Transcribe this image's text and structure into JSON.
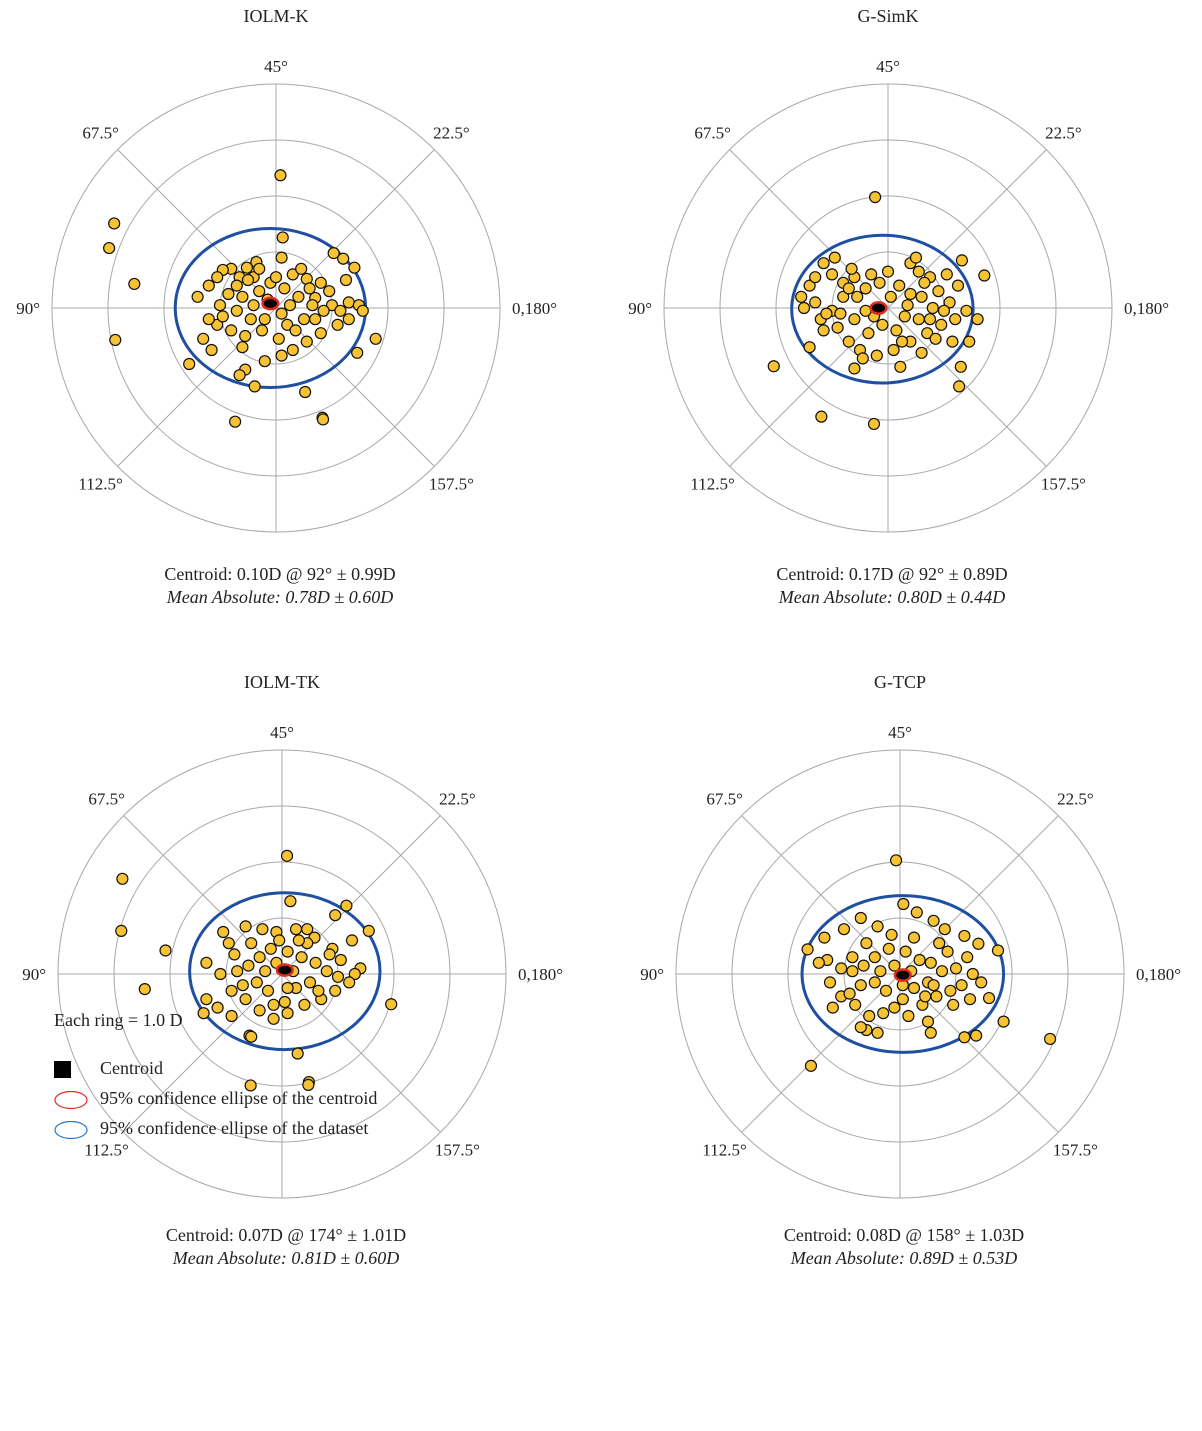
{
  "chart_data": [
    {
      "type": "scatter",
      "title": "IOLM-K",
      "angle_labels": [
        "45°",
        "22.5°",
        "0,180°",
        "157.5°",
        "112.5°",
        "90°",
        "67.5°"
      ],
      "centroid_text": "Centroid: 0.10D @ 92° ± 0.99D",
      "mean_text": "Mean Absolute: 0.78D ± 0.60D",
      "centroid": {
        "x": -0.1,
        "y": 0.08
      },
      "dataset_ellipse": {
        "cx": -0.1,
        "cy": 0.0,
        "rx": 1.7,
        "ry": 1.42
      },
      "centroid_ellipse": {
        "rx": 0.14,
        "ry": 0.1
      },
      "points": [
        [
          -2.89,
          1.51
        ],
        [
          -2.98,
          1.07
        ],
        [
          -2.53,
          0.43
        ],
        [
          -2.87,
          -0.57
        ],
        [
          0.08,
          2.37
        ],
        [
          0.12,
          1.26
        ],
        [
          0.1,
          0.9
        ],
        [
          -0.35,
          0.82
        ],
        [
          -0.52,
          0.72
        ],
        [
          -0.8,
          0.7
        ],
        [
          -0.95,
          0.68
        ],
        [
          -1.05,
          0.55
        ],
        [
          -1.2,
          0.4
        ],
        [
          -0.65,
          0.55
        ],
        [
          -0.4,
          0.55
        ],
        [
          0.3,
          0.6
        ],
        [
          0.55,
          0.52
        ],
        [
          0.8,
          0.45
        ],
        [
          1.03,
          0.98
        ],
        [
          1.2,
          0.88
        ],
        [
          1.4,
          0.72
        ],
        [
          1.25,
          0.5
        ],
        [
          0.95,
          0.3
        ],
        [
          0.7,
          0.18
        ],
        [
          1.3,
          0.1
        ],
        [
          1.48,
          0.05
        ],
        [
          1.55,
          -0.05
        ],
        [
          1.3,
          -0.2
        ],
        [
          1.1,
          -0.3
        ],
        [
          0.8,
          -0.45
        ],
        [
          0.55,
          -0.6
        ],
        [
          0.3,
          -0.75
        ],
        [
          0.1,
          -0.85
        ],
        [
          -0.2,
          -0.95
        ],
        [
          -0.55,
          -0.5
        ],
        [
          -0.8,
          -0.4
        ],
        [
          -1.05,
          -0.3
        ],
        [
          -1.2,
          -0.2
        ],
        [
          -1.4,
          0.2
        ],
        [
          -1.3,
          -0.55
        ],
        [
          -1.15,
          -0.75
        ],
        [
          -0.55,
          -1.1
        ],
        [
          -0.65,
          -1.2
        ],
        [
          -0.38,
          -1.4
        ],
        [
          -1.55,
          -1.0
        ],
        [
          0.52,
          -1.5
        ],
        [
          0.83,
          -1.96
        ],
        [
          0.84,
          -1.99
        ],
        [
          -0.73,
          -2.03
        ],
        [
          1.78,
          -0.55
        ],
        [
          1.45,
          -0.8
        ],
        [
          -0.1,
          0.45
        ],
        [
          0.15,
          0.35
        ],
        [
          -0.3,
          0.3
        ],
        [
          0.4,
          0.2
        ],
        [
          -0.6,
          0.2
        ],
        [
          -0.85,
          0.25
        ],
        [
          0.2,
          -0.3
        ],
        [
          -0.25,
          -0.4
        ],
        [
          0.5,
          -0.2
        ],
        [
          -0.45,
          -0.2
        ],
        [
          0.05,
          -0.55
        ],
        [
          -0.7,
          -0.05
        ],
        [
          0.65,
          0.05
        ],
        [
          1.0,
          0.05
        ],
        [
          -1.0,
          0.05
        ],
        [
          0.35,
          -0.4
        ],
        [
          -0.15,
          0.15
        ],
        [
          0.25,
          0.05
        ],
        [
          -0.4,
          0.05
        ],
        [
          0.6,
          0.35
        ],
        [
          -0.7,
          0.4
        ],
        [
          -0.95,
          -0.15
        ],
        [
          0.85,
          -0.05
        ],
        [
          1.15,
          -0.05
        ],
        [
          -0.2,
          -0.2
        ],
        [
          0.1,
          -0.1
        ],
        [
          -0.6,
          -0.7
        ],
        [
          0.45,
          0.7
        ],
        [
          -0.3,
          0.7
        ],
        [
          0.0,
          0.55
        ],
        [
          0.7,
          -0.2
        ],
        [
          -0.5,
          0.5
        ]
      ]
    },
    {
      "type": "scatter",
      "title": "G-SimK",
      "angle_labels": [
        "45°",
        "22.5°",
        "0,180°",
        "157.5°",
        "112.5°",
        "90°",
        "67.5°"
      ],
      "centroid_text": "Centroid: 0.17D @ 92° ± 0.89D",
      "mean_text": "Mean Absolute: 0.80D ± 0.44D",
      "centroid": {
        "x": -0.17,
        "y": 0.0
      },
      "dataset_ellipse": {
        "cx": -0.1,
        "cy": -0.02,
        "rx": 1.62,
        "ry": 1.32
      },
      "centroid_ellipse": {
        "rx": 0.14,
        "ry": 0.1
      },
      "points": [
        [
          -0.23,
          1.98
        ],
        [
          1.32,
          0.85
        ],
        [
          1.72,
          0.58
        ],
        [
          -0.6,
          0.55
        ],
        [
          -0.3,
          0.6
        ],
        [
          0.4,
          0.8
        ],
        [
          0.55,
          0.65
        ],
        [
          0.75,
          0.55
        ],
        [
          -1.15,
          0.8
        ],
        [
          -1.0,
          0.6
        ],
        [
          -0.8,
          0.45
        ],
        [
          -1.4,
          0.4
        ],
        [
          -1.55,
          0.2
        ],
        [
          -1.3,
          0.1
        ],
        [
          -1.5,
          0.0
        ],
        [
          -1.2,
          -0.2
        ],
        [
          -0.9,
          -0.35
        ],
        [
          -0.7,
          -0.6
        ],
        [
          -0.5,
          -0.75
        ],
        [
          -0.2,
          -0.85
        ],
        [
          0.1,
          -0.75
        ],
        [
          0.4,
          -0.6
        ],
        [
          0.7,
          -0.45
        ],
        [
          0.95,
          -0.3
        ],
        [
          1.2,
          -0.2
        ],
        [
          1.4,
          -0.05
        ],
        [
          1.6,
          -0.2
        ],
        [
          1.1,
          0.1
        ],
        [
          0.9,
          0.3
        ],
        [
          1.25,
          0.4
        ],
        [
          1.45,
          -0.6
        ],
        [
          1.3,
          -1.05
        ],
        [
          1.27,
          -1.4
        ],
        [
          -2.04,
          -1.04
        ],
        [
          -1.19,
          -1.94
        ],
        [
          -0.25,
          -2.07
        ],
        [
          -1.4,
          -0.7
        ],
        [
          -0.6,
          -1.08
        ],
        [
          0.22,
          -1.05
        ],
        [
          -0.4,
          0.35
        ],
        [
          -0.15,
          0.45
        ],
        [
          0.2,
          0.4
        ],
        [
          0.4,
          0.25
        ],
        [
          0.6,
          0.2
        ],
        [
          -0.55,
          0.2
        ],
        [
          -0.8,
          0.2
        ],
        [
          -1.0,
          -0.05
        ],
        [
          0.15,
          -0.4
        ],
        [
          -0.35,
          -0.45
        ],
        [
          0.55,
          -0.2
        ],
        [
          -0.6,
          -0.2
        ],
        [
          0.8,
          0.0
        ],
        [
          1.0,
          -0.05
        ],
        [
          0.3,
          -0.15
        ],
        [
          -0.25,
          -0.15
        ],
        [
          0.05,
          0.2
        ],
        [
          -0.1,
          -0.3
        ],
        [
          0.35,
          0.05
        ],
        [
          -0.4,
          -0.05
        ],
        [
          0.65,
          0.45
        ],
        [
          -0.7,
          0.35
        ],
        [
          -0.85,
          -0.1
        ],
        [
          0.85,
          -0.55
        ],
        [
          -0.45,
          -0.9
        ],
        [
          0.25,
          -0.6
        ],
        [
          -1.15,
          -0.4
        ],
        [
          -1.3,
          0.55
        ],
        [
          -0.95,
          0.9
        ],
        [
          0.6,
          -0.8
        ],
        [
          1.15,
          -0.6
        ],
        [
          0.5,
          0.9
        ],
        [
          -0.65,
          0.7
        ],
        [
          0.0,
          0.65
        ],
        [
          1.05,
          0.6
        ],
        [
          -1.1,
          -0.1
        ],
        [
          0.75,
          -0.2
        ]
      ]
    },
    {
      "type": "scatter",
      "title": "IOLM-TK",
      "angle_labels": [
        "45°",
        "22.5°",
        "0,180°",
        "157.5°",
        "112.5°",
        "90°",
        "67.5°"
      ],
      "centroid_text": "Centroid: 0.07D @ 174° ± 1.01D",
      "mean_text": "Mean Absolute: 0.81D ± 0.60D",
      "centroid": {
        "x": 0.05,
        "y": 0.07
      },
      "dataset_ellipse": {
        "cx": 0.05,
        "cy": 0.05,
        "rx": 1.7,
        "ry": 1.4
      },
      "centroid_ellipse": {
        "rx": 0.14,
        "ry": 0.1
      },
      "points": [
        [
          0.09,
          2.11
        ],
        [
          -2.85,
          1.7
        ],
        [
          -2.87,
          0.77
        ],
        [
          -2.08,
          0.42
        ],
        [
          -2.45,
          -0.27
        ],
        [
          0.15,
          1.3
        ],
        [
          -0.65,
          0.85
        ],
        [
          -0.35,
          0.8
        ],
        [
          -0.1,
          0.75
        ],
        [
          0.25,
          0.8
        ],
        [
          0.45,
          0.8
        ],
        [
          0.58,
          0.65
        ],
        [
          1.15,
          1.22
        ],
        [
          0.95,
          1.05
        ],
        [
          1.55,
          0.77
        ],
        [
          1.25,
          0.6
        ],
        [
          0.9,
          0.45
        ],
        [
          1.05,
          0.25
        ],
        [
          1.4,
          0.1
        ],
        [
          1.3,
          0.0
        ],
        [
          1.2,
          -0.15
        ],
        [
          0.95,
          -0.3
        ],
        [
          0.7,
          -0.45
        ],
        [
          0.4,
          -0.55
        ],
        [
          0.1,
          -0.7
        ],
        [
          -0.15,
          -0.8
        ],
        [
          -0.4,
          -0.65
        ],
        [
          -0.65,
          -0.45
        ],
        [
          -0.9,
          -0.3
        ],
        [
          -1.1,
          0.0
        ],
        [
          -1.35,
          0.2
        ],
        [
          -0.95,
          0.55
        ],
        [
          -1.05,
          0.75
        ],
        [
          -1.35,
          -0.45
        ],
        [
          -1.15,
          -0.6
        ],
        [
          -1.4,
          -0.7
        ],
        [
          -0.9,
          -0.75
        ],
        [
          -0.58,
          -1.1
        ],
        [
          -0.55,
          -1.12
        ],
        [
          0.28,
          -1.42
        ],
        [
          0.48,
          -1.93
        ],
        [
          0.47,
          -1.98
        ],
        [
          -0.56,
          -1.99
        ],
        [
          1.95,
          -0.54
        ],
        [
          -0.2,
          0.45
        ],
        [
          0.1,
          0.4
        ],
        [
          -0.4,
          0.3
        ],
        [
          0.35,
          0.3
        ],
        [
          0.6,
          0.2
        ],
        [
          -0.6,
          0.15
        ],
        [
          -0.8,
          0.05
        ],
        [
          0.25,
          -0.25
        ],
        [
          -0.25,
          -0.3
        ],
        [
          0.5,
          -0.15
        ],
        [
          -0.45,
          -0.15
        ],
        [
          0.05,
          -0.5
        ],
        [
          -0.7,
          -0.2
        ],
        [
          0.8,
          0.05
        ],
        [
          1.0,
          -0.05
        ],
        [
          0.45,
          0.55
        ],
        [
          -0.1,
          0.2
        ],
        [
          0.2,
          0.05
        ],
        [
          -0.3,
          0.05
        ],
        [
          0.65,
          -0.3
        ],
        [
          -0.55,
          0.55
        ],
        [
          0.3,
          0.6
        ],
        [
          -0.15,
          -0.55
        ],
        [
          0.85,
          0.35
        ],
        [
          -0.85,
          0.35
        ],
        [
          0.1,
          -0.25
        ],
        [
          -0.05,
          0.6
        ]
      ]
    },
    {
      "type": "scatter",
      "title": "G-TCP",
      "angle_labels": [
        "45°",
        "22.5°",
        "0,180°",
        "157.5°",
        "112.5°",
        "90°",
        "67.5°"
      ],
      "centroid_text": "Centroid: 0.08D @ 158° ± 1.03D",
      "mean_text": "Mean Absolute: 0.89D ± 0.53D",
      "centroid": {
        "x": 0.05,
        "y": -0.02
      },
      "dataset_ellipse": {
        "cx": 0.05,
        "cy": 0.0,
        "rx": 1.8,
        "ry": 1.4
      },
      "centroid_ellipse": {
        "rx": 0.14,
        "ry": 0.1
      },
      "points": [
        [
          -0.07,
          2.03
        ],
        [
          0.06,
          1.25
        ],
        [
          0.3,
          1.1
        ],
        [
          0.6,
          0.95
        ],
        [
          0.8,
          0.8
        ],
        [
          1.15,
          0.68
        ],
        [
          1.4,
          0.54
        ],
        [
          -0.7,
          1.0
        ],
        [
          -0.4,
          0.85
        ],
        [
          -1.0,
          0.8
        ],
        [
          -1.35,
          0.65
        ],
        [
          -1.65,
          0.44
        ],
        [
          -1.3,
          0.25
        ],
        [
          -1.05,
          0.1
        ],
        [
          -1.25,
          -0.15
        ],
        [
          -1.05,
          -0.4
        ],
        [
          -1.2,
          -0.6
        ],
        [
          -0.8,
          -0.55
        ],
        [
          -0.55,
          -0.75
        ],
        [
          -0.3,
          -0.7
        ],
        [
          -0.1,
          -0.6
        ],
        [
          0.15,
          -0.75
        ],
        [
          0.4,
          -0.55
        ],
        [
          0.65,
          -0.4
        ],
        [
          0.9,
          -0.3
        ],
        [
          1.1,
          -0.2
        ],
        [
          1.3,
          0.0
        ],
        [
          1.2,
          0.3
        ],
        [
          1.0,
          0.1
        ],
        [
          0.85,
          0.4
        ],
        [
          1.45,
          -0.15
        ],
        [
          1.75,
          0.42
        ],
        [
          1.59,
          -0.43
        ],
        [
          1.85,
          -0.85
        ],
        [
          1.36,
          -1.1
        ],
        [
          1.15,
          -1.13
        ],
        [
          0.55,
          -1.05
        ],
        [
          0.5,
          -0.85
        ],
        [
          -0.6,
          -1.0
        ],
        [
          -0.4,
          -1.05
        ],
        [
          -0.7,
          -0.95
        ],
        [
          2.68,
          -1.16
        ],
        [
          -1.59,
          -1.64
        ],
        [
          -0.2,
          0.45
        ],
        [
          0.1,
          0.4
        ],
        [
          -0.45,
          0.3
        ],
        [
          0.35,
          0.25
        ],
        [
          0.55,
          0.2
        ],
        [
          -0.65,
          0.15
        ],
        [
          -0.85,
          0.05
        ],
        [
          0.25,
          -0.25
        ],
        [
          -0.25,
          -0.3
        ],
        [
          0.5,
          -0.15
        ],
        [
          -0.45,
          -0.15
        ],
        [
          0.05,
          -0.45
        ],
        [
          -0.7,
          -0.2
        ],
        [
          0.75,
          0.05
        ],
        [
          -0.1,
          0.15
        ],
        [
          0.2,
          0.05
        ],
        [
          -0.35,
          0.05
        ],
        [
          0.7,
          0.55
        ],
        [
          -0.6,
          0.55
        ],
        [
          0.45,
          -0.4
        ],
        [
          -0.9,
          -0.35
        ],
        [
          0.95,
          -0.55
        ],
        [
          -0.15,
          0.7
        ],
        [
          0.25,
          0.65
        ],
        [
          0.6,
          -0.2
        ],
        [
          -1.45,
          0.2
        ],
        [
          1.25,
          -0.45
        ],
        [
          -0.85,
          0.3
        ],
        [
          0.05,
          -0.2
        ]
      ]
    }
  ],
  "legend": {
    "ring_note": "Each ring = 1.0 D",
    "items": [
      "Centroid",
      "95% confidence ellipse of the centroid",
      "95% confidence ellipse of the dataset"
    ]
  },
  "colors": {
    "point_fill": "#f7c233",
    "point_stroke": "#111111",
    "dataset_ellipse": "#1f4fa0",
    "centroid_ellipse": "#e02a1c",
    "centroid": "#000000",
    "grid": "#a8a8a8"
  }
}
